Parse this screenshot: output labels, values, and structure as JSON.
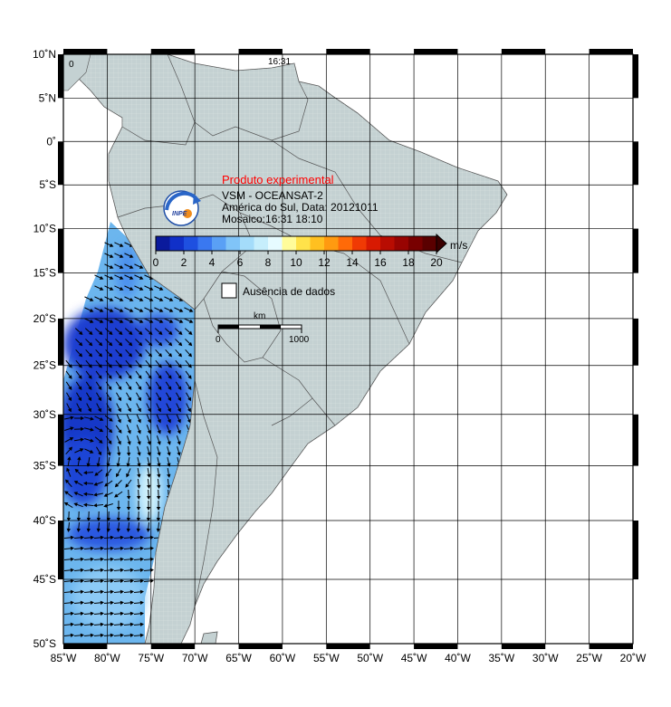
{
  "map": {
    "lon_range": [
      -85,
      -20
    ],
    "lat_range": [
      -50,
      10
    ],
    "lon_ticks": [
      "85˚W",
      "80˚W",
      "75˚W",
      "70˚W",
      "65˚W",
      "60˚W",
      "55˚W",
      "50˚W",
      "45˚W",
      "40˚W",
      "35˚W",
      "30˚W",
      "25˚W",
      "20˚W"
    ],
    "lat_ticks": [
      "10˚N",
      "5˚N",
      "0˚",
      "5˚S",
      "10˚S",
      "15˚S",
      "20˚S",
      "25˚S",
      "30˚S",
      "35˚S",
      "40˚S",
      "45˚S",
      "50˚S"
    ],
    "pass_times": [
      "0",
      "16:31"
    ]
  },
  "title": {
    "status": "Produto experimental",
    "product": "VSM - OCEANSAT-2",
    "region_date": "América do Sul, Data: 20121011",
    "mosaic": "Mosaico:16:31 18:10",
    "logo_text": "INPE"
  },
  "colorbar": {
    "ticks": [
      "0",
      "2",
      "4",
      "6",
      "8",
      "10",
      "12",
      "14",
      "16",
      "18",
      "20"
    ],
    "unit": "m/s",
    "colors": [
      "#0a1a9c",
      "#1030c8",
      "#1e50e0",
      "#3a78f0",
      "#5aa0f5",
      "#80c4f8",
      "#a4dcfa",
      "#c6eefc",
      "#e6fbff",
      "#fffc9a",
      "#ffe24a",
      "#ffc020",
      "#ff9a10",
      "#ff6a08",
      "#f03a04",
      "#d81a02",
      "#b80c02",
      "#980402",
      "#780000",
      "#5a0000"
    ]
  },
  "legend": {
    "no_data": "Ausência de dados"
  },
  "scale": {
    "label": "km",
    "start": "0",
    "end": "1000"
  },
  "colors": {
    "land": "#c4d1d2",
    "ocean": "#ffffff",
    "grid": "#000000",
    "text_red": "#ff0000"
  }
}
